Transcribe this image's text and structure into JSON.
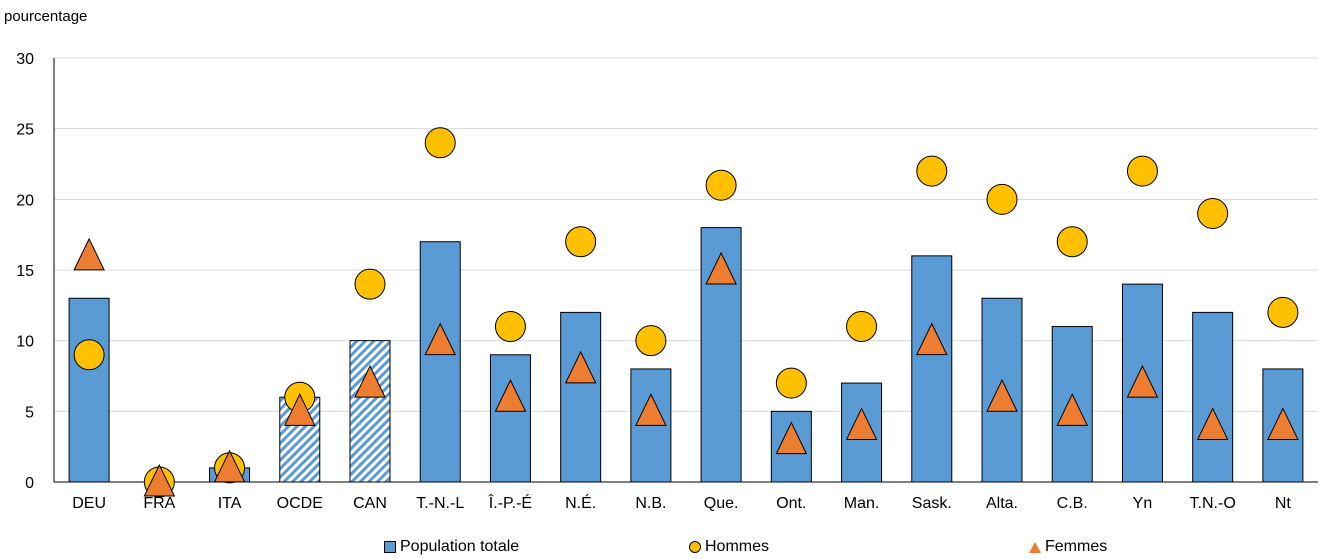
{
  "chart_data": {
    "type": "bar",
    "unit_label": "pourcentage",
    "categories": [
      "DEU",
      "FRA",
      "ITA",
      "OCDE",
      "CAN",
      "T.-N.-L",
      "Î.-P.-É",
      "N.É.",
      "N.B.",
      "Que.",
      "Ont.",
      "Man.",
      "Sask.",
      "Alta.",
      "C.B.",
      "Yn",
      "T.N.-O",
      "Nt"
    ],
    "hatched_categories": [
      "OCDE",
      "CAN"
    ],
    "ylim": [
      0,
      30
    ],
    "yticks": [
      0,
      5,
      10,
      15,
      20,
      25,
      30
    ],
    "grid": true,
    "legend_position": "bottom",
    "series": [
      {
        "name": "Population totale",
        "type": "bar",
        "color": "#5b9bd5",
        "values": [
          13,
          0,
          1,
          6,
          10,
          17,
          9,
          12,
          8,
          18,
          5,
          7,
          16,
          13,
          11,
          14,
          12,
          8
        ]
      },
      {
        "name": "Hommes",
        "type": "marker-circle",
        "color": "#ffc000",
        "values": [
          9,
          0,
          1,
          6,
          14,
          24,
          11,
          17,
          10,
          21,
          7,
          11,
          22,
          20,
          17,
          22,
          19,
          12
        ]
      },
      {
        "name": "Femmes",
        "type": "marker-triangle",
        "color": "#ed7d31",
        "values": [
          16,
          0,
          1,
          5,
          7,
          10,
          6,
          8,
          5,
          15,
          3,
          4,
          10,
          6,
          5,
          7,
          4,
          4
        ]
      }
    ]
  }
}
